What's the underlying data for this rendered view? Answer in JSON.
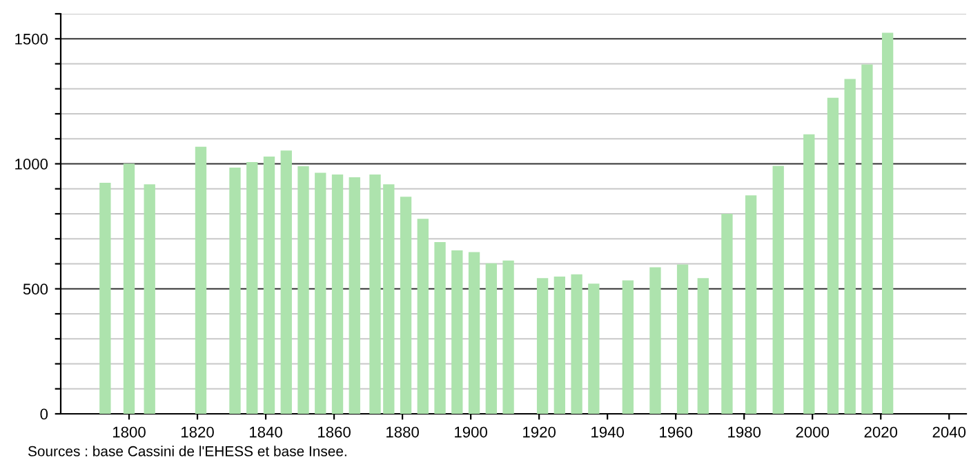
{
  "chart_data": {
    "type": "bar",
    "x": [
      1793,
      1800,
      1806,
      1821,
      1831,
      1836,
      1841,
      1846,
      1851,
      1856,
      1861,
      1866,
      1872,
      1876,
      1881,
      1886,
      1891,
      1896,
      1901,
      1906,
      1911,
      1921,
      1926,
      1931,
      1936,
      1946,
      1954,
      1962,
      1968,
      1975,
      1982,
      1990,
      1999,
      2006,
      2011,
      2016,
      2022
    ],
    "values": [
      924,
      1001,
      918,
      1068,
      985,
      1007,
      1029,
      1053,
      990,
      964,
      957,
      946,
      957,
      918,
      868,
      780,
      687,
      654,
      647,
      602,
      613,
      543,
      549,
      558,
      521,
      534,
      586,
      597,
      543,
      800,
      874,
      992,
      1118,
      1264,
      1339,
      1397,
      1524
    ],
    "color": "#ade3ad",
    "xlim": [
      1780,
      2045
    ],
    "xticks": [
      1800,
      1820,
      1840,
      1860,
      1880,
      1900,
      1920,
      1940,
      1960,
      1980,
      2000,
      2020,
      2040
    ],
    "ylim": [
      0,
      1600
    ],
    "yticks": [
      0,
      {
        "value": 100,
        "label": null
      },
      {
        "value": 200,
        "label": null
      },
      {
        "value": 300,
        "label": null
      },
      {
        "value": 400,
        "label": null
      },
      500,
      {
        "value": 600,
        "label": null
      },
      {
        "value": 700,
        "label": null
      },
      {
        "value": 800,
        "label": null
      },
      {
        "value": 900,
        "label": null
      },
      1000,
      {
        "value": 1100,
        "label": null
      },
      {
        "value": 1200,
        "label": null
      },
      {
        "value": 1300,
        "label": null
      },
      {
        "value": 1400,
        "label": null
      },
      1500,
      {
        "value": 1600,
        "label": null
      }
    ],
    "grid": "y",
    "annotations": [
      "Sources : base Cassini de l'EHESS et base Insee."
    ]
  }
}
